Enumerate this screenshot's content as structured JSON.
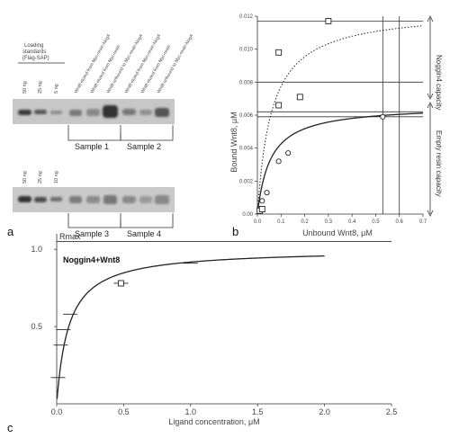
{
  "panel_a": {
    "label": "a",
    "standards_header": [
      "Loading",
      "standards",
      "(Flag-SAP)"
    ],
    "lane_labels_top": [
      "50 ng",
      "25 ng",
      "5 ng",
      "Wnt8 eluted from Myc-resin-Nog4",
      "Wnt8 eluted from Myc-resin",
      "Wnt8 unbound to Myc-resin-Nog4",
      "Wnt8 eluted from Myc-resin-Nog4",
      "Wnt8 eluted from Myc-resin",
      "Wnt8 unbound to Myc-resin-Nog4"
    ],
    "lane_labels_bottom": [
      "50 ng",
      "25 ng",
      "10 ng"
    ],
    "samples": [
      "Sample 1",
      "Sample 2",
      "Sample 3",
      "Sample 4"
    ]
  },
  "panel_b": {
    "label": "b",
    "xlabel": "Unbound Wnt8, μM",
    "ylabel": "Bound Wnt8, μM",
    "right_labels": [
      "Noggin4 capacity",
      "Empty resin capacity"
    ]
  },
  "panel_c": {
    "label": "c",
    "xlabel": "Ligand concentration, μM",
    "rmax_label": "Rmax",
    "annotation": "Noggin4+Wnt8"
  },
  "chart_data": [
    {
      "type": "scatter",
      "panel": "b",
      "xlabel": "Unbound Wnt8, μM",
      "ylabel": "Bound Wnt8, μM",
      "xlim": [
        0,
        0.7
      ],
      "ylim": [
        0,
        0.012
      ],
      "xticks": [
        0.0,
        0.1,
        0.2,
        0.3,
        0.4,
        0.5,
        0.6,
        0.7
      ],
      "yticks": [
        0.0,
        0.002,
        0.004,
        0.006,
        0.008,
        0.01,
        0.012
      ],
      "xtick_labels": [
        "0.0",
        "0.1",
        "0.2",
        "0.3",
        "0.4",
        "0.5",
        "0.6",
        "0.7"
      ],
      "ytick_labels": [
        "0.00",
        "0.002",
        "0.004",
        "0.006",
        "0.008",
        "0.010",
        "0.012"
      ],
      "series": [
        {
          "marker": "square",
          "points": [
            [
              0.01,
              0.0002
            ],
            [
              0.02,
              0.0003
            ],
            [
              0.09,
              0.0098
            ],
            [
              0.09,
              0.0066
            ],
            [
              0.18,
              0.0071
            ],
            [
              0.3,
              0.0117
            ]
          ]
        },
        {
          "marker": "circle",
          "points": [
            [
              0.02,
              0.0008
            ],
            [
              0.04,
              0.0013
            ],
            [
              0.09,
              0.0032
            ],
            [
              0.13,
              0.0037
            ],
            [
              0.53,
              0.0059
            ]
          ]
        }
      ],
      "curves": [
        {
          "style": "dotted",
          "bmax": 0.0124,
          "kd": 0.06
        },
        {
          "style": "solid",
          "bmax": 0.0066,
          "kd": 0.055
        }
      ],
      "hlines": [
        0.0117,
        0.008,
        0.0062,
        0.0059
      ],
      "vlines": [
        0.53,
        0.6
      ],
      "grid": false
    },
    {
      "type": "scatter",
      "panel": "c",
      "xlabel": "Ligand concentration, μM",
      "xlim": [
        0,
        2.5
      ],
      "ylim": [
        0,
        1.1
      ],
      "xticks": [
        0.0,
        0.5,
        1.0,
        1.5,
        2.0,
        2.5
      ],
      "yticks": [
        0.5,
        1.0
      ],
      "xtick_labels": [
        "0.0",
        "0.5",
        "1.0",
        "1.5",
        "2.0",
        "2.5"
      ],
      "ytick_labels": [
        "0.5",
        "1.0"
      ],
      "rmax": 1.05,
      "points": [
        [
          0.01,
          0.17
        ],
        [
          0.03,
          0.38
        ],
        [
          0.05,
          0.48
        ],
        [
          0.1,
          0.58
        ],
        [
          0.48,
          0.78
        ],
        [
          1.0,
          0.91
        ]
      ],
      "curve": {
        "bmax": 1.0,
        "kd": 0.09,
        "xmax": 2.0
      },
      "grid": false
    }
  ]
}
